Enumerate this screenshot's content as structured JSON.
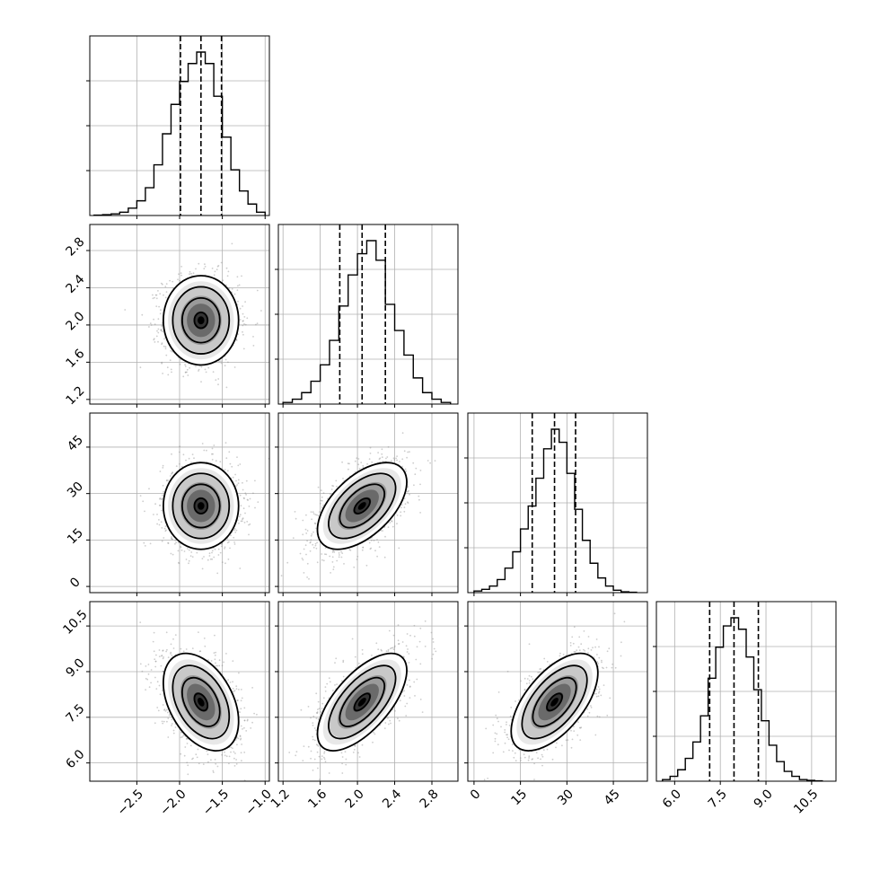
{
  "chart_data": {
    "type": "corner",
    "grid": true,
    "parameters": [
      {
        "ticks": [
          -2.5,
          -2.0,
          -1.5,
          -1.0
        ],
        "tick_labels": [
          "−2.5",
          "−2.0",
          "−1.5",
          "−1.0"
        ],
        "range": [
          -3.05,
          -0.95
        ]
      },
      {
        "ticks": [
          1.2,
          1.6,
          2.0,
          2.4,
          2.8
        ],
        "tick_labels": [
          "1.2",
          "1.6",
          "2.0",
          "2.4",
          "2.8"
        ],
        "range": [
          1.15,
          3.08
        ]
      },
      {
        "ticks": [
          0,
          15,
          30,
          45
        ],
        "tick_labels": [
          "0",
          "15",
          "30",
          "45"
        ],
        "range": [
          -2,
          56
        ]
      },
      {
        "ticks": [
          6.0,
          7.5,
          9.0,
          10.5
        ],
        "tick_labels": [
          "6.0",
          "7.5",
          "9.0",
          "10.5"
        ],
        "range": [
          5.4,
          11.3
        ]
      }
    ],
    "marginals": [
      {
        "bin_edges": [
          -3.0,
          -2.9,
          -2.8,
          -2.7,
          -2.6,
          -2.5,
          -2.4,
          -2.3,
          -2.2,
          -2.1,
          -2.0,
          -1.9,
          -1.8,
          -1.7,
          -1.6,
          -1.5,
          -1.4,
          -1.3,
          -1.2,
          -1.1,
          -1.0
        ],
        "counts": [
          0.002,
          0.005,
          0.01,
          0.02,
          0.045,
          0.09,
          0.17,
          0.31,
          0.5,
          0.68,
          0.82,
          0.93,
          1.0,
          0.93,
          0.73,
          0.48,
          0.28,
          0.15,
          0.07,
          0.02
        ],
        "quantiles": [
          -1.99,
          -1.75,
          -1.51
        ]
      },
      {
        "bin_edges": [
          1.2,
          1.3,
          1.4,
          1.5,
          1.6,
          1.7,
          1.8,
          1.9,
          2.0,
          2.1,
          2.2,
          2.3,
          2.4,
          2.5,
          2.6,
          2.7,
          2.8,
          2.9,
          3.0
        ],
        "counts": [
          0.01,
          0.03,
          0.07,
          0.14,
          0.24,
          0.39,
          0.6,
          0.79,
          0.92,
          1.0,
          0.88,
          0.61,
          0.45,
          0.3,
          0.16,
          0.07,
          0.03,
          0.01
        ],
        "quantiles": [
          1.81,
          2.05,
          2.3
        ]
      },
      {
        "bin_edges": [
          0,
          2.5,
          5,
          7.5,
          10,
          12.5,
          15,
          17.5,
          20,
          22.5,
          25,
          27.5,
          30,
          32.5,
          35,
          37.5,
          40,
          42.5,
          45,
          47.5,
          50,
          52.5
        ],
        "counts": [
          0.01,
          0.02,
          0.04,
          0.08,
          0.15,
          0.25,
          0.39,
          0.53,
          0.7,
          0.88,
          1.0,
          0.92,
          0.73,
          0.51,
          0.32,
          0.18,
          0.09,
          0.04,
          0.015,
          0.005,
          0.002
        ],
        "quantiles": [
          18.8,
          26.0,
          32.8
        ]
      },
      {
        "bin_edges": [
          5.6,
          5.85,
          6.1,
          6.35,
          6.6,
          6.85,
          7.1,
          7.35,
          7.6,
          7.85,
          8.1,
          8.35,
          8.6,
          8.85,
          9.1,
          9.35,
          9.6,
          9.85,
          10.1,
          10.35,
          10.6,
          10.85
        ],
        "counts": [
          0.01,
          0.03,
          0.07,
          0.14,
          0.24,
          0.4,
          0.63,
          0.82,
          0.95,
          1.0,
          0.93,
          0.76,
          0.56,
          0.37,
          0.22,
          0.12,
          0.06,
          0.03,
          0.01,
          0.005,
          0.002
        ],
        "quantiles": [
          7.15,
          7.95,
          8.75
        ]
      }
    ],
    "pairs": [
      {
        "row": 1,
        "col": 0,
        "mean": [
          -1.75,
          2.05
        ],
        "std": [
          0.22,
          0.24
        ],
        "corr": 0.0
      },
      {
        "row": 2,
        "col": 0,
        "mean": [
          -1.75,
          26.0
        ],
        "std": [
          0.22,
          7.0
        ],
        "corr": 0.0
      },
      {
        "row": 2,
        "col": 1,
        "mean": [
          2.05,
          26.0
        ],
        "std": [
          0.24,
          7.0
        ],
        "corr": 0.55
      },
      {
        "row": 3,
        "col": 0,
        "mean": [
          -1.75,
          8.0
        ],
        "std": [
          0.22,
          0.8
        ],
        "corr": -0.4
      },
      {
        "row": 3,
        "col": 1,
        "mean": [
          2.05,
          8.0
        ],
        "std": [
          0.24,
          0.8
        ],
        "corr": 0.65
      },
      {
        "row": 3,
        "col": 2,
        "mean": [
          26.0,
          8.0
        ],
        "std": [
          7.0,
          0.8
        ],
        "corr": 0.6
      }
    ]
  }
}
